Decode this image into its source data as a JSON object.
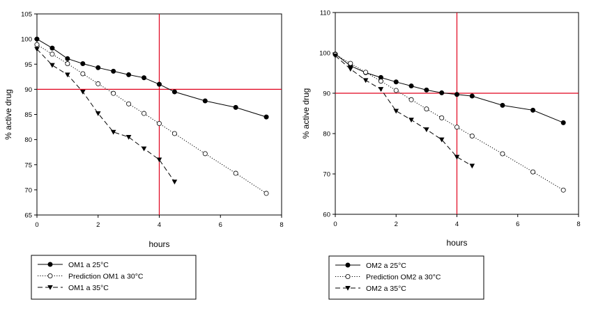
{
  "chart_data": [
    {
      "type": "line",
      "xlabel": "hours",
      "ylabel": "% active drug",
      "xlim": [
        0,
        8
      ],
      "ylim": [
        65,
        105
      ],
      "xticks": [
        "0",
        "2",
        "4",
        "6",
        "8"
      ],
      "yticks": [
        "65",
        "70",
        "75",
        "80",
        "85",
        "90",
        "95",
        "100",
        "105"
      ],
      "reference_lines": {
        "x": 4,
        "y": 90,
        "color": "#e0001b"
      },
      "grid": false,
      "legend_position": "bottom-left",
      "series": [
        {
          "name": "OM1 a 25°C",
          "style": "solid",
          "marker": "filled-circle",
          "x": [
            0,
            0.5,
            1,
            1.5,
            2,
            2.5,
            3,
            3.5,
            4,
            4.5,
            5.5,
            6.5,
            7.5
          ],
          "y": [
            100,
            98.2,
            96.1,
            95.1,
            94.3,
            93.6,
            92.9,
            92.3,
            91,
            89.5,
            87.7,
            86.4,
            84.5
          ]
        },
        {
          "name": "Prediction OM1 a 30°C",
          "style": "dotted",
          "marker": "open-circle",
          "x": [
            0,
            0.5,
            1,
            1.5,
            2,
            2.5,
            3,
            3.5,
            4,
            4.5,
            5.5,
            6.5,
            7.5
          ],
          "y": [
            98.9,
            97,
            95.1,
            93.1,
            91.1,
            89.2,
            87.1,
            85.2,
            83.2,
            81.2,
            77.2,
            73.3,
            69.3
          ]
        },
        {
          "name": "OM1 a 35°C",
          "style": "dashed",
          "marker": "filled-triangle-down",
          "x": [
            0,
            0.5,
            1,
            1.5,
            2,
            2.5,
            3,
            3.5,
            4,
            4.5
          ],
          "y": [
            98,
            94.8,
            92.9,
            89.5,
            85.2,
            81.5,
            80.5,
            78.2,
            76,
            71.6
          ]
        }
      ]
    },
    {
      "type": "line",
      "xlabel": "hours",
      "ylabel": "% active drug",
      "xlim": [
        0,
        8
      ],
      "ylim": [
        60,
        110
      ],
      "xticks": [
        "0",
        "2",
        "4",
        "6",
        "8"
      ],
      "yticks": [
        "60",
        "70",
        "80",
        "90",
        "100",
        "110"
      ],
      "reference_lines": {
        "x": 4,
        "y": 90,
        "color": "#e0001b"
      },
      "grid": false,
      "legend_position": "bottom-left",
      "series": [
        {
          "name": "OM2 a 25°C",
          "style": "solid",
          "marker": "filled-circle",
          "x": [
            0,
            0.5,
            1,
            1.5,
            2,
            2.5,
            3,
            3.5,
            4,
            4.5,
            5.5,
            6.5,
            7.5
          ],
          "y": [
            99.7,
            96.8,
            95.1,
            93.9,
            92.8,
            91.8,
            90.8,
            90.1,
            89.7,
            89.3,
            87,
            85.8,
            82.7
          ]
        },
        {
          "name": "Prediction OM2 a 30°C",
          "style": "dotted",
          "marker": "open-circle",
          "x": [
            0,
            0.5,
            1,
            1.5,
            2,
            2.5,
            3,
            3.5,
            4,
            4.5,
            5.5,
            6.5,
            7.5
          ],
          "y": [
            99.6,
            97.4,
            95.2,
            93,
            90.7,
            88.4,
            86.1,
            83.9,
            81.6,
            79.4,
            75,
            70.5,
            66
          ]
        },
        {
          "name": "OM2 a 35°C",
          "style": "dashed",
          "marker": "filled-triangle-down",
          "x": [
            0,
            0.5,
            1,
            1.5,
            2,
            2.5,
            3,
            3.5,
            4,
            4.5
          ],
          "y": [
            99.3,
            96,
            93.2,
            91,
            85.6,
            83.4,
            81,
            78.5,
            74.2,
            72
          ]
        }
      ]
    }
  ]
}
